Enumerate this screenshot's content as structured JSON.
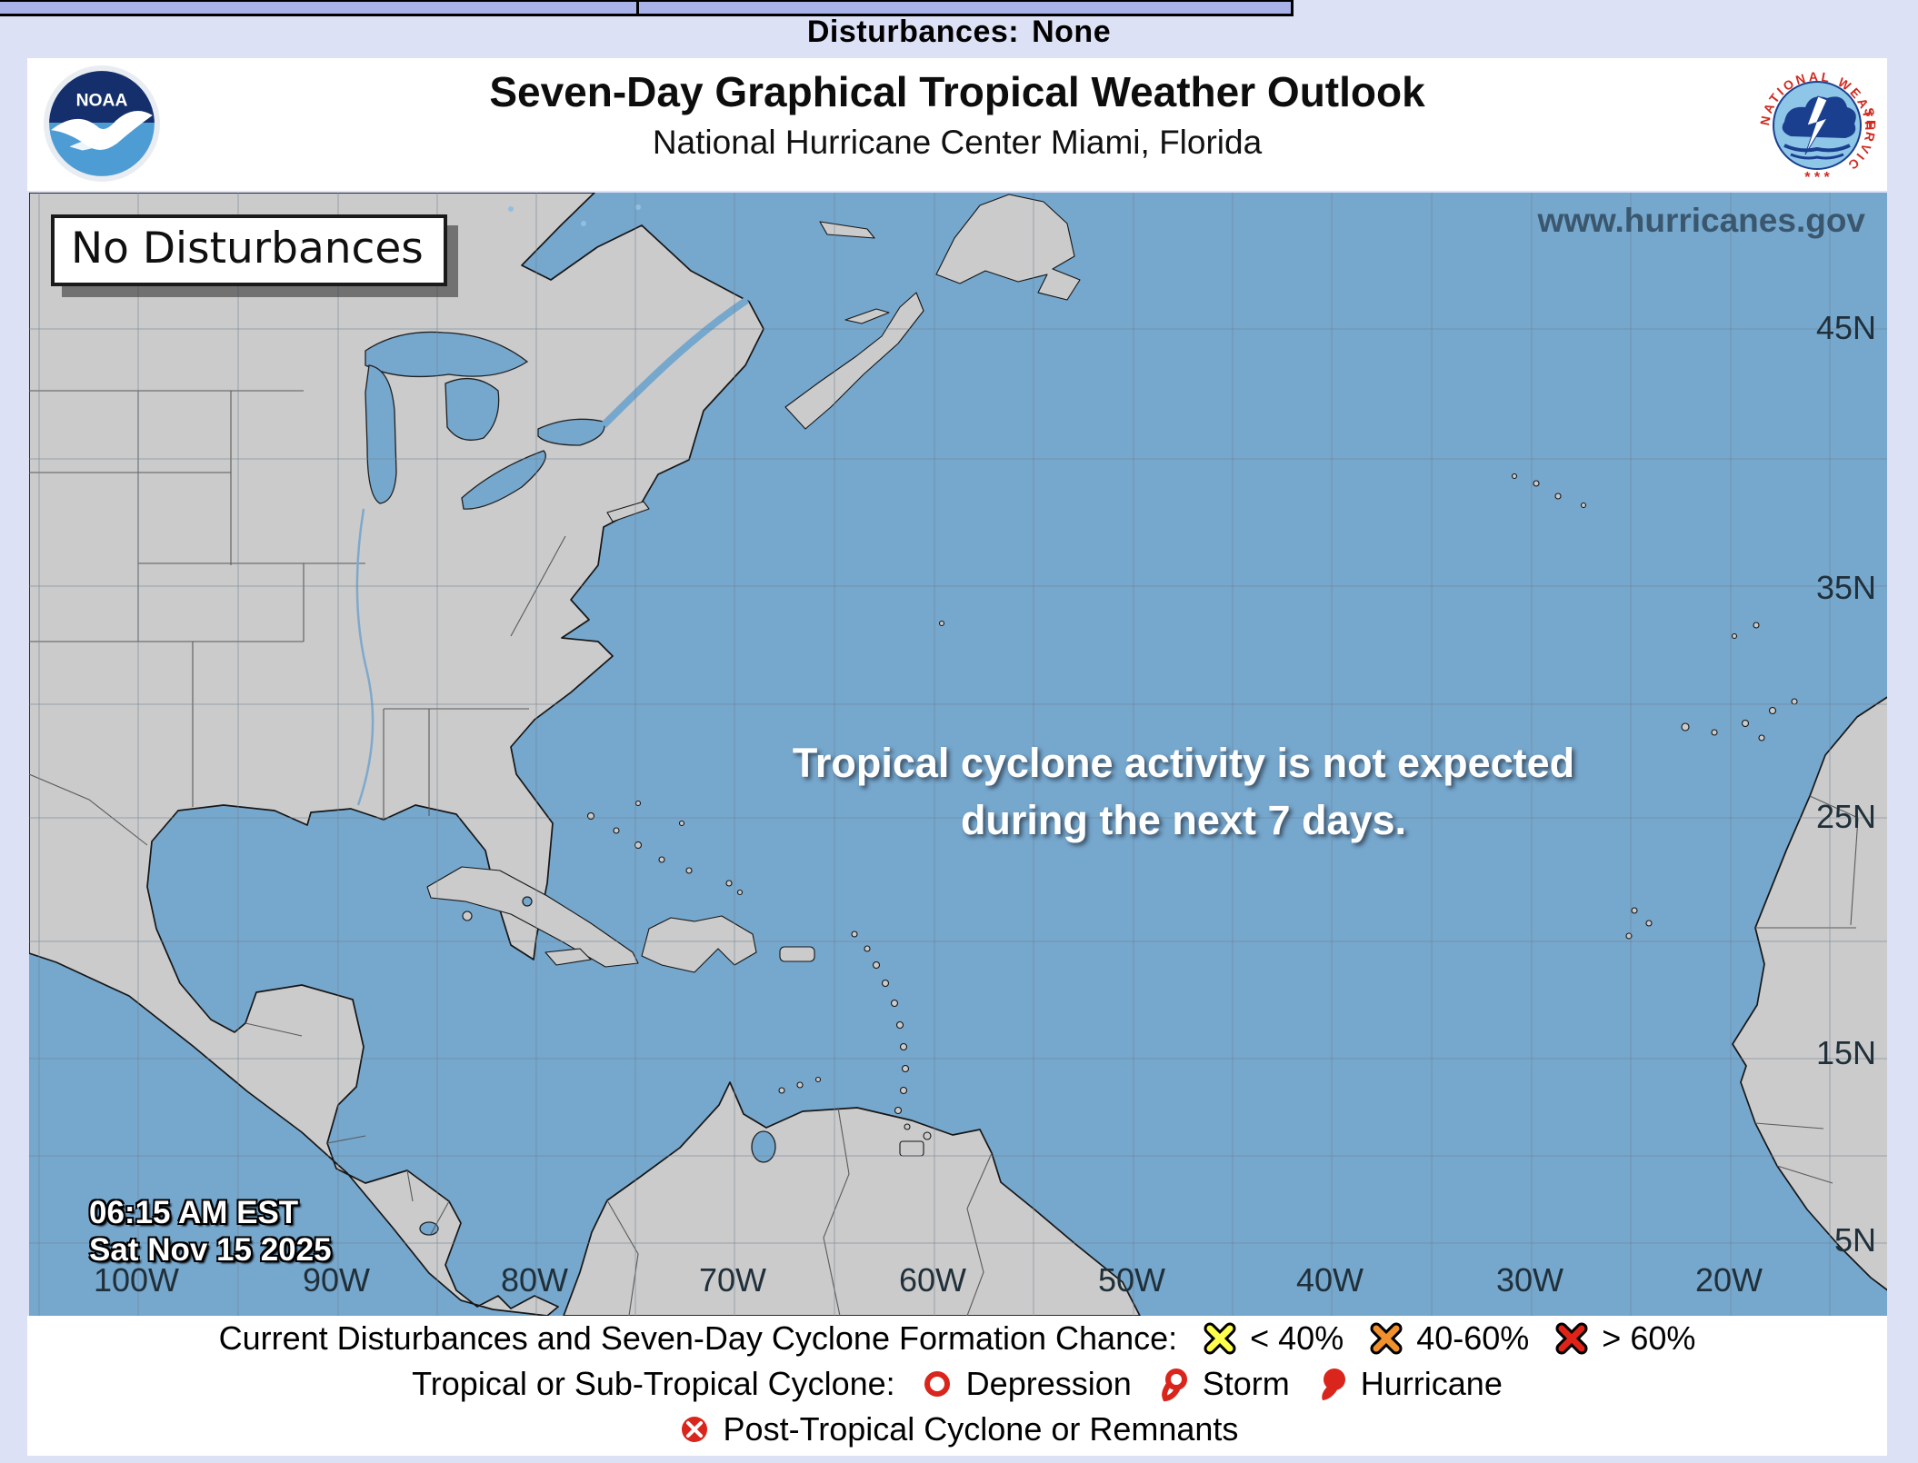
{
  "browser_tab_bar": {
    "status_label": "Disturbances:",
    "status_value": "None"
  },
  "header": {
    "title": "Seven-Day Graphical Tropical Weather Outlook",
    "subtitle": "National Hurricane Center  Miami, Florida",
    "noaa_logo_text": "NOAA",
    "nws_logo_text_top": "NATIONAL WEATHER",
    "nws_logo_text_bottom": "SERVICE",
    "nws_logo_stars": "* * *"
  },
  "map": {
    "badge": "No Disturbances",
    "watermark": "www.hurricanes.gov",
    "message_line1": "Tropical cyclone activity is not expected",
    "message_line2": "during the next 7 days.",
    "time": "06:15 AM EST",
    "date": "Sat Nov 15 2025",
    "lat_labels": [
      "45N",
      "35N",
      "25N",
      "15N",
      "5N"
    ],
    "lon_labels": [
      "100W",
      "90W",
      "80W",
      "70W",
      "60W",
      "50W",
      "40W",
      "30W",
      "20W"
    ]
  },
  "legend": {
    "row1": {
      "label": "Current Disturbances and Seven-Day Cyclone Formation Chance:",
      "items": [
        {
          "icon": "x-yellow",
          "label": "< 40%"
        },
        {
          "icon": "x-orange",
          "label": "40-60%"
        },
        {
          "icon": "x-red",
          "label": "> 60%"
        }
      ]
    },
    "row2": {
      "label": "Tropical or Sub-Tropical Cyclone:",
      "items": [
        {
          "icon": "depression-icon",
          "label": "Depression"
        },
        {
          "icon": "storm-icon",
          "label": "Storm"
        },
        {
          "icon": "hurricane-icon",
          "label": "Hurricane"
        }
      ]
    },
    "row3": {
      "items": [
        {
          "icon": "post-tropical-icon",
          "label": "Post-Tropical Cyclone or Remnants"
        }
      ]
    }
  },
  "colors": {
    "page_bg": "#dde1f6",
    "tab_fill": "#a9b3e8",
    "ocean": "#76a7cd",
    "land": "#cbcbcb",
    "grid": "#6e8291",
    "watermark_text": "#3a576e",
    "chance_low": "#ffff4d",
    "chance_medium": "#f0912d",
    "chance_high": "#e02318",
    "cyclone_red": "#da251c"
  }
}
